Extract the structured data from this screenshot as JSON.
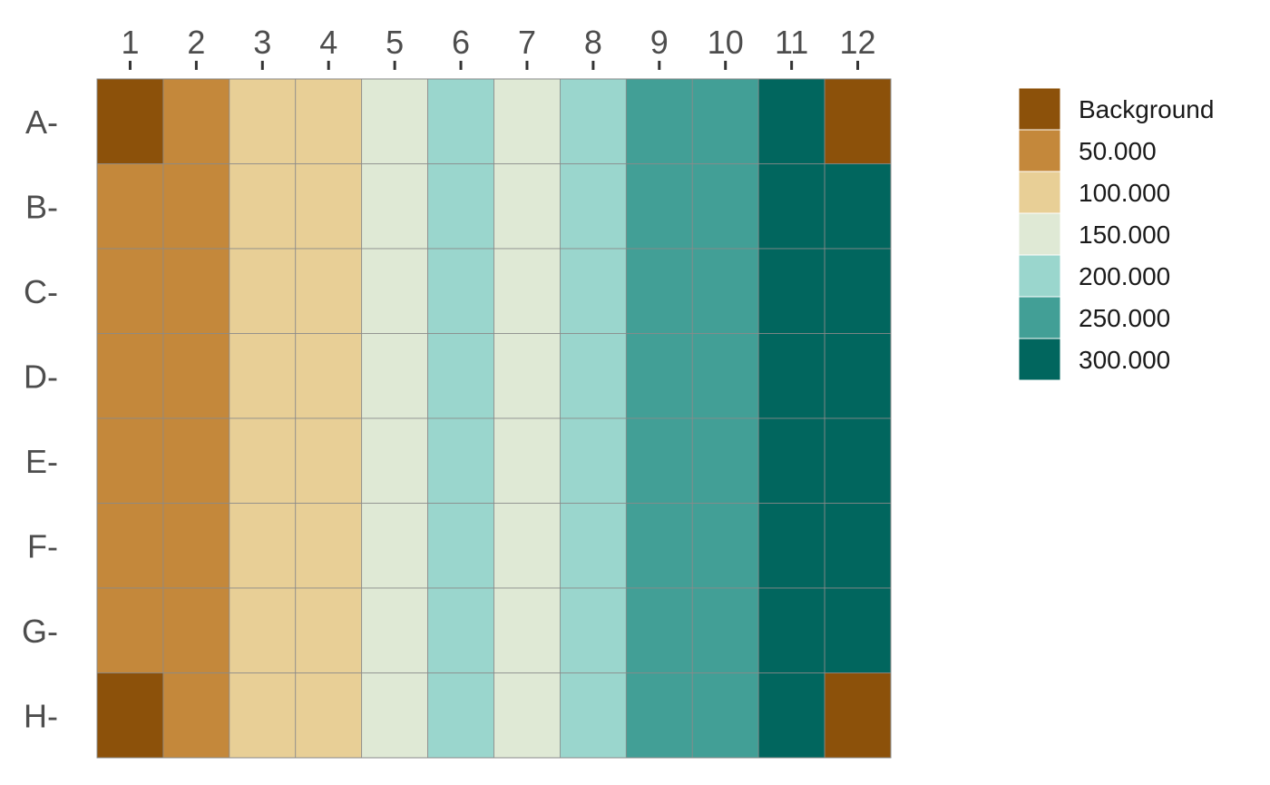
{
  "chart_data": {
    "type": "heatmap",
    "title": "",
    "xlabel": "",
    "ylabel": "",
    "x_categories": [
      "1",
      "2",
      "3",
      "4",
      "5",
      "6",
      "7",
      "8",
      "9",
      "10",
      "11",
      "12"
    ],
    "x_tick_position": "top",
    "y_categories": [
      "A-",
      "B-",
      "C-",
      "D-",
      "E-",
      "F-",
      "G-",
      "H-"
    ],
    "grid": true,
    "legend_position": "right",
    "legend": {
      "title": "",
      "items": [
        {
          "label": "Background",
          "color": "#8c510a"
        },
        {
          "label": "50.000",
          "color": "#c4883b"
        },
        {
          "label": "100.000",
          "color": "#e8cf96"
        },
        {
          "label": "150.000",
          "color": "#dfe9d5"
        },
        {
          "label": "200.000",
          "color": "#9ad6cd"
        },
        {
          "label": "250.000",
          "color": "#429f96"
        },
        {
          "label": "300.000",
          "color": "#01665e"
        }
      ]
    },
    "values": [
      [
        "Background",
        "50.000",
        "100.000",
        "100.000",
        "150.000",
        "200.000",
        "150.000",
        "200.000",
        "250.000",
        "250.000",
        "300.000",
        "Background"
      ],
      [
        "50.000",
        "50.000",
        "100.000",
        "100.000",
        "150.000",
        "200.000",
        "150.000",
        "200.000",
        "250.000",
        "250.000",
        "300.000",
        "300.000"
      ],
      [
        "50.000",
        "50.000",
        "100.000",
        "100.000",
        "150.000",
        "200.000",
        "150.000",
        "200.000",
        "250.000",
        "250.000",
        "300.000",
        "300.000"
      ],
      [
        "50.000",
        "50.000",
        "100.000",
        "100.000",
        "150.000",
        "200.000",
        "150.000",
        "200.000",
        "250.000",
        "250.000",
        "300.000",
        "300.000"
      ],
      [
        "50.000",
        "50.000",
        "100.000",
        "100.000",
        "150.000",
        "200.000",
        "150.000",
        "200.000",
        "250.000",
        "250.000",
        "300.000",
        "300.000"
      ],
      [
        "50.000",
        "50.000",
        "100.000",
        "100.000",
        "150.000",
        "200.000",
        "150.000",
        "200.000",
        "250.000",
        "250.000",
        "300.000",
        "300.000"
      ],
      [
        "50.000",
        "50.000",
        "100.000",
        "100.000",
        "150.000",
        "200.000",
        "150.000",
        "200.000",
        "250.000",
        "250.000",
        "300.000",
        "300.000"
      ],
      [
        "Background",
        "50.000",
        "100.000",
        "100.000",
        "150.000",
        "200.000",
        "150.000",
        "200.000",
        "250.000",
        "250.000",
        "300.000",
        "Background"
      ]
    ]
  }
}
